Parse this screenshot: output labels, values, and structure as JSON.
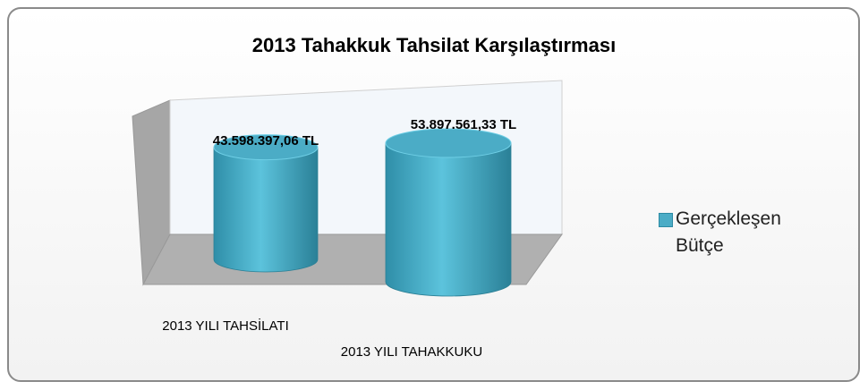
{
  "chart_data": {
    "type": "cylinder",
    "title": "2013 Tahakkuk Tahsilat Karşılaştırması",
    "categories": [
      "2013 YILI TAHSİLATI",
      "2013 YILI TAHAKKUKU"
    ],
    "series": [
      {
        "name": "Gerçekleşen Bütçe",
        "color": "#4bacc6",
        "values": [
          43598397.06,
          53897561.33
        ],
        "value_labels": [
          "43.598.397,06 TL",
          "53.897.561,33 TL"
        ]
      }
    ],
    "legend": "right"
  }
}
